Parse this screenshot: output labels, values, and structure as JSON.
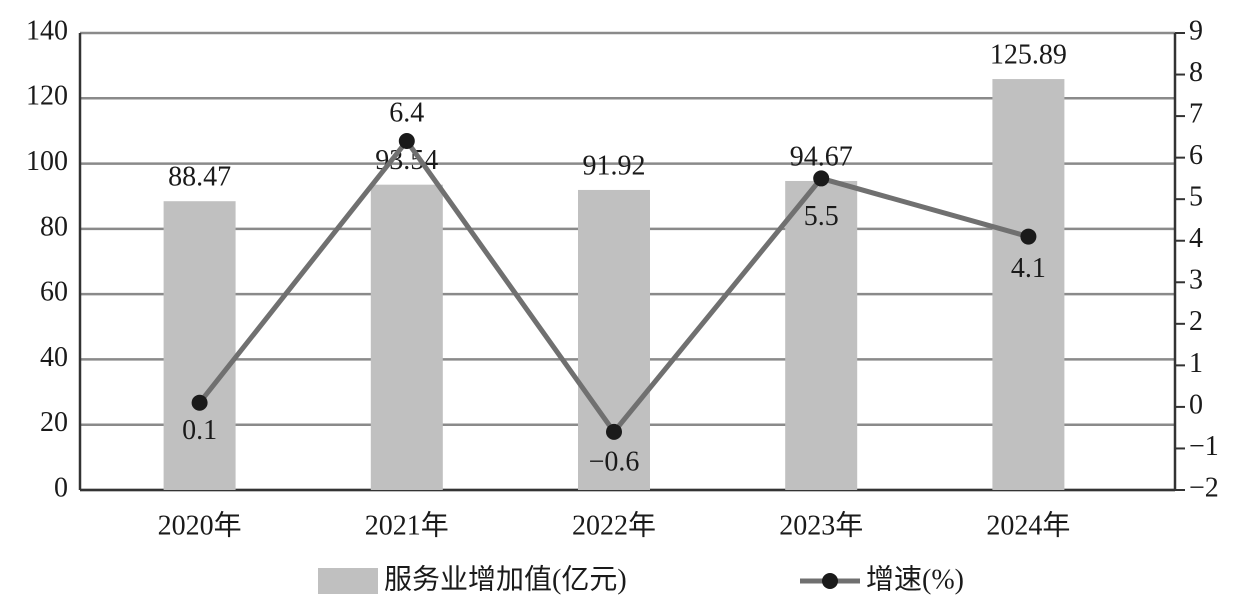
{
  "chart_data": {
    "type": "bar",
    "categories": [
      "2020年",
      "2021年",
      "2022年",
      "2023年",
      "2024年"
    ],
    "series": [
      {
        "name": "服务业增加值(亿元)",
        "type": "bar",
        "color": "#c0c0c0",
        "values": [
          88.47,
          93.54,
          91.92,
          94.67,
          125.89
        ]
      },
      {
        "name": "增速(%)",
        "type": "line",
        "axis": "y2",
        "color": "#707070",
        "marker_color": "#1a1a1a",
        "values": [
          0.1,
          6.4,
          -0.6,
          5.5,
          4.1
        ],
        "value_labels": [
          "0.1",
          "6.4",
          "−0.6",
          "5.5",
          "4.1"
        ]
      }
    ],
    "ylim": [
      0,
      140
    ],
    "yticks": [
      0,
      20,
      40,
      60,
      80,
      100,
      120,
      140
    ],
    "y2lim": [
      -2,
      9
    ],
    "y2ticks": [
      {
        "value": -2,
        "label": "−2"
      },
      {
        "value": -1,
        "label": "−1"
      },
      0,
      1,
      2,
      3,
      4,
      5,
      6,
      7,
      8,
      9
    ],
    "grid": true
  }
}
